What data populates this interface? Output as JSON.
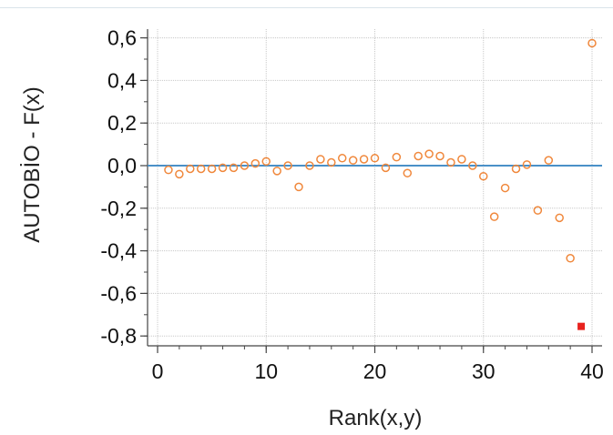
{
  "chart_data": {
    "type": "scatter",
    "xlabel": "Rank(x,y)",
    "ylabel": "AUTOBİO - F(x)",
    "xlim": [
      0,
      40
    ],
    "ylim": [
      -0.8,
      0.6
    ],
    "x_ticks": [
      0,
      10,
      20,
      30,
      40
    ],
    "x_tick_labels": [
      "0",
      "10",
      "20",
      "30",
      "40"
    ],
    "y_ticks": [
      0.6,
      0.4,
      0.2,
      0.0,
      -0.2,
      -0.4,
      -0.6,
      -0.8
    ],
    "y_tick_labels": [
      "0,6",
      "0,4",
      "0,2",
      "0,0",
      "-0,2",
      "-0,4",
      "-0,6",
      "-0,8"
    ],
    "grid": true,
    "reference_line": {
      "y": 0.0,
      "color": "#4a90c8"
    },
    "series": [
      {
        "marker": "open-circle",
        "color": "#f0883c",
        "points": [
          [
            1,
            -0.02
          ],
          [
            2,
            -0.04
          ],
          [
            3,
            -0.015
          ],
          [
            4,
            -0.015
          ],
          [
            5,
            -0.015
          ],
          [
            6,
            -0.01
          ],
          [
            7,
            -0.01
          ],
          [
            8,
            0.0
          ],
          [
            9,
            0.01
          ],
          [
            10,
            0.02
          ],
          [
            11,
            -0.025
          ],
          [
            12,
            0.0
          ],
          [
            13,
            -0.1
          ],
          [
            14,
            0.0
          ],
          [
            15,
            0.03
          ],
          [
            16,
            0.015
          ],
          [
            17,
            0.035
          ],
          [
            18,
            0.025
          ],
          [
            19,
            0.03
          ],
          [
            20,
            0.035
          ],
          [
            21,
            -0.01
          ],
          [
            22,
            0.04
          ],
          [
            23,
            -0.035
          ],
          [
            24,
            0.045
          ],
          [
            25,
            0.055
          ],
          [
            26,
            0.045
          ],
          [
            27,
            0.015
          ],
          [
            28,
            0.03
          ],
          [
            29,
            0.0
          ],
          [
            30,
            -0.05
          ],
          [
            31,
            -0.24
          ],
          [
            32,
            -0.105
          ],
          [
            33,
            -0.015
          ],
          [
            34,
            0.005
          ],
          [
            35,
            -0.21
          ],
          [
            36,
            0.025
          ],
          [
            37,
            -0.245
          ],
          [
            38,
            -0.435
          ],
          [
            40,
            0.575
          ]
        ]
      },
      {
        "marker": "filled-square",
        "color": "#e8231f",
        "points": [
          [
            39,
            -0.755
          ]
        ]
      }
    ]
  }
}
